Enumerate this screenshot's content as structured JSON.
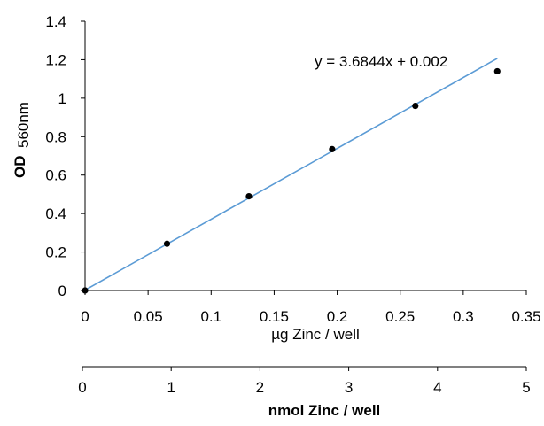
{
  "chart_data": {
    "type": "scatter",
    "title": "",
    "ylabel": {
      "main": "OD",
      "sub": "560nm"
    },
    "xlabel": "µg Zinc / well",
    "secondary_xlabel": "nmol Zinc / well",
    "xlim": [
      0,
      0.35
    ],
    "ylim": [
      0,
      1.4
    ],
    "secondary_xlim": [
      0,
      5
    ],
    "x_ticks": [
      "0",
      "0.05",
      "0.1",
      "0.15",
      "0.2",
      "0.25",
      "0.3",
      "0.35"
    ],
    "y_ticks": [
      "0",
      "0.2",
      "0.4",
      "0.6",
      "0.8",
      "1",
      "1.2",
      "1.4"
    ],
    "secondary_x_ticks": [
      "0",
      "1",
      "2",
      "3",
      "4",
      "5"
    ],
    "grid": false,
    "series": [
      {
        "points": [
          {
            "x": 0,
            "y": 0
          },
          {
            "x": 0.065,
            "y": 0.243
          },
          {
            "x": 0.13,
            "y": 0.49
          },
          {
            "x": 0.196,
            "y": 0.735
          },
          {
            "x": 0.262,
            "y": 0.96
          },
          {
            "x": 0.327,
            "y": 1.14
          }
        ],
        "color": "#000000"
      }
    ],
    "trendline": {
      "slope": 3.6844,
      "intercept": 0.002,
      "x_range": [
        0,
        0.327
      ],
      "color": "#5B9BD5",
      "label": "y = 3.6844x + 0.002"
    }
  }
}
